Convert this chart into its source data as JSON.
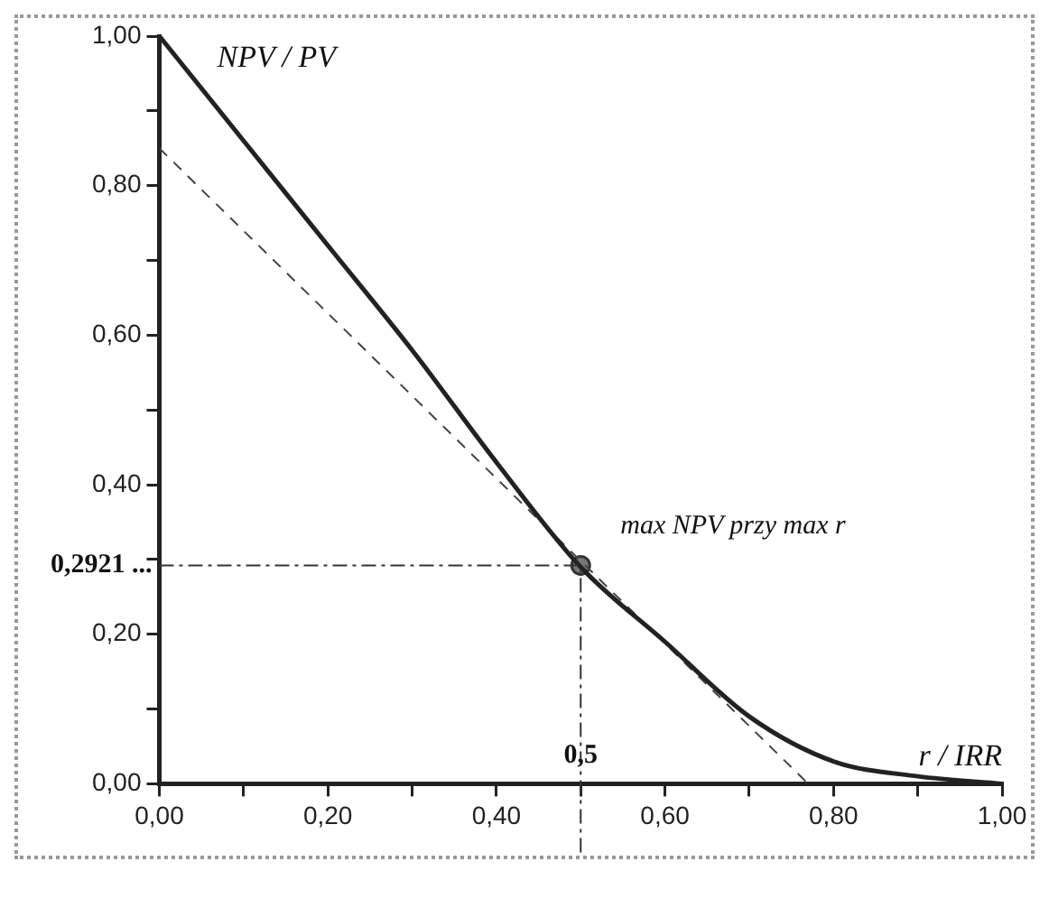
{
  "chart_data": {
    "type": "line",
    "xlabel": "r / IRR",
    "ylabel": "NPV / PV",
    "xlim": [
      0,
      1
    ],
    "ylim": [
      0,
      1
    ],
    "xticks": [
      {
        "value": 0,
        "label": "0,00"
      },
      {
        "value": 0.1,
        "label": null
      },
      {
        "value": 0.2,
        "label": "0,20"
      },
      {
        "value": 0.3,
        "label": null
      },
      {
        "value": 0.4,
        "label": "0,40"
      },
      {
        "value": 0.5,
        "label": null
      },
      {
        "value": 0.6,
        "label": "0,60"
      },
      {
        "value": 0.7,
        "label": null
      },
      {
        "value": 0.8,
        "label": "0,80"
      },
      {
        "value": 0.9,
        "label": null
      },
      {
        "value": 1,
        "label": "1,00"
      }
    ],
    "yticks": [
      {
        "value": 0,
        "label": "0,00"
      },
      {
        "value": 0.1,
        "label": null
      },
      {
        "value": 0.2,
        "label": "0,20"
      },
      {
        "value": 0.3,
        "label": null
      },
      {
        "value": 0.4,
        "label": "0,40"
      },
      {
        "value": 0.5,
        "label": null
      },
      {
        "value": 0.6,
        "label": "0,60"
      },
      {
        "value": 0.7,
        "label": null
      },
      {
        "value": 0.8,
        "label": "0,80"
      },
      {
        "value": 0.9,
        "label": null
      },
      {
        "value": 1,
        "label": "1,00"
      }
    ],
    "grid": false,
    "legend": false,
    "series": [
      {
        "color": "#222222",
        "line_style": "solid",
        "marker": "none",
        "x": [
          0,
          0.1,
          0.2,
          0.3,
          0.4,
          0.5,
          0.6,
          0.7,
          0.8,
          0.9,
          1
        ],
        "values": [
          1,
          0.86,
          0.72,
          0.58,
          0.43,
          0.29,
          0.19,
          0.09,
          0.03,
          0.01,
          0
        ]
      },
      {
        "color": "#444444",
        "line_style": "dashed",
        "marker": "none",
        "x": [
          0,
          0.77
        ],
        "values": [
          0.85,
          0
        ]
      },
      {
        "type": "scatter",
        "color": "#333333",
        "marker": "circle",
        "x": [
          0.5
        ],
        "values": [
          0.2921
        ]
      }
    ],
    "ref_lines": [
      {
        "axis": "y",
        "value": 0.2921,
        "label": "0,2921 ..."
      },
      {
        "axis": "x",
        "value": 0.5,
        "label": "0,5"
      }
    ],
    "annotations": [
      {
        "text": "max NPV przy max r",
        "x": 0.5,
        "y": 0.2921
      }
    ]
  }
}
